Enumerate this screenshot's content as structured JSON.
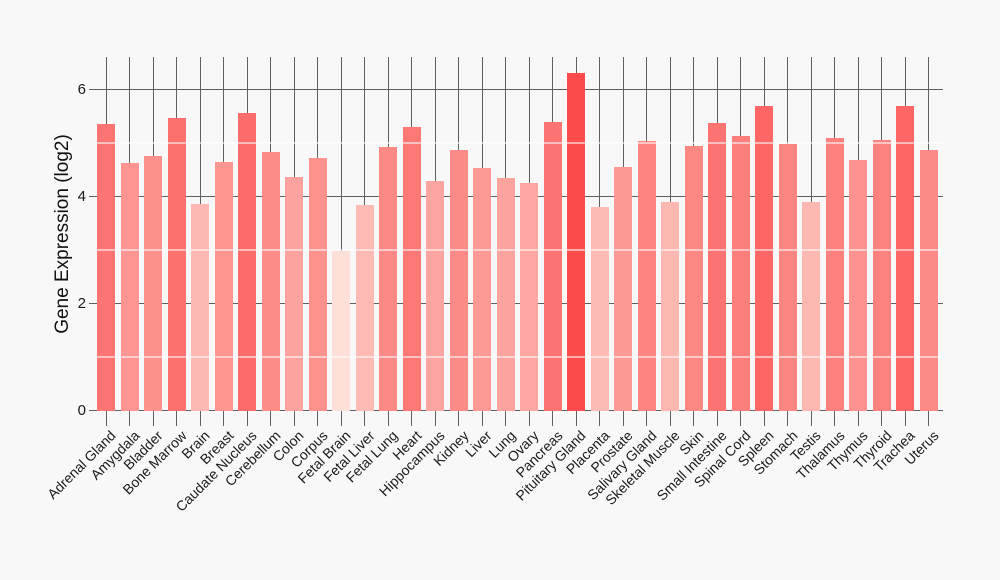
{
  "figure": {
    "background": "#f8f8f8",
    "major_grid_color": "#606060",
    "minor_grid_color": "#ffffff",
    "text_color": "#1a1a1a"
  },
  "chart_data": {
    "type": "bar",
    "title": "",
    "xlabel": "",
    "ylabel": "Gene Expression (log2)",
    "ylim": [
      0,
      6.6
    ],
    "yticks": [
      0,
      2,
      4,
      6
    ],
    "minor_yticks": [
      1,
      3,
      5
    ],
    "legend": "none",
    "grid": "major horizontal + per-category vertical lines in dark gray under bars; faint white minor horizontal lines at odd values over bars",
    "color_encoding": "bar fill maps value: light pink (lowest) to saturated red (highest)",
    "categories": [
      "Adrenal Gland",
      "Amygdala",
      "Bladder",
      "Bone Marrow",
      "Brain",
      "Breast",
      "Caudate Nucleus",
      "Cerebellum",
      "Colon",
      "Corpus",
      "Fetal Brain",
      "Fetal Liver",
      "Fetal Lung",
      "Heart",
      "Hippocampus",
      "Kidney",
      "Liver",
      "Lung",
      "Ovary",
      "Pancreas",
      "Pituitary Gland",
      "Placenta",
      "Prostate",
      "Salivary Gland",
      "Skeletal Muscle",
      "Skin",
      "Small Intestine",
      "Spinal Cord",
      "Spleen",
      "Stomach",
      "Testis",
      "Thalamus",
      "Thymus",
      "Thyroid",
      "Trachea",
      "Uterus"
    ],
    "values": [
      5.35,
      4.63,
      4.75,
      5.47,
      3.86,
      4.65,
      5.56,
      4.83,
      4.36,
      4.72,
      2.98,
      3.84,
      4.92,
      5.3,
      4.29,
      4.87,
      4.54,
      4.34,
      4.26,
      5.39,
      6.3,
      3.8,
      4.56,
      5.04,
      3.9,
      4.94,
      5.37,
      5.13,
      5.69,
      4.99,
      3.9,
      5.1,
      4.68,
      5.06,
      5.69,
      4.87
    ],
    "bar_colors": [
      "#fc7573",
      "#fd9692",
      "#fc908d",
      "#fc706e",
      "#fdb8b3",
      "#fd9591",
      "#fc6c6a",
      "#fc8d89",
      "#fda29d",
      "#fc928e",
      "#fee0d8",
      "#fdb9b3",
      "#fc8985",
      "#fc7875",
      "#fda5a0",
      "#fc8b87",
      "#fd9a96",
      "#fda39e",
      "#fda6a2",
      "#fc7472",
      "#fb4b4b",
      "#fdbbb5",
      "#fd9995",
      "#fc8481",
      "#fdb7b1",
      "#fc8884",
      "#fc7472",
      "#fc7f7c",
      "#fc6664",
      "#fc8682",
      "#fdb7b1",
      "#fc817e",
      "#fc9390",
      "#fc827f",
      "#fc6664",
      "#fc8b87"
    ]
  }
}
